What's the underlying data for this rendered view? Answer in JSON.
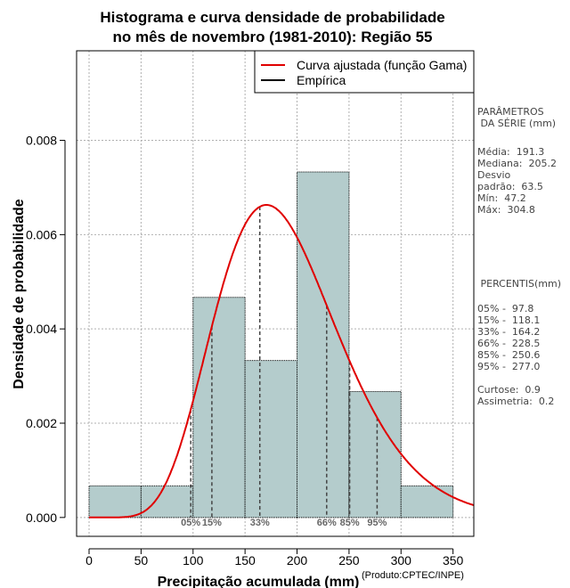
{
  "chart_data": {
    "type": "histogram",
    "title_line1": "Histograma e curva densidade de probabilidade",
    "title_line2": "no mês de novembro (1981-2010): Região 55",
    "xlabel": "Precipitação acumulada (mm)",
    "ylabel": "Densidade de probabilidade",
    "xlim": [
      -12,
      370
    ],
    "ylim": [
      -0.0004,
      0.0099
    ],
    "xticks": [
      0,
      50,
      100,
      150,
      200,
      250,
      300,
      350
    ],
    "yticks": [
      0.0,
      0.002,
      0.004,
      0.006,
      0.008
    ],
    "ytick_labels": [
      "0.000",
      "0.002",
      "0.004",
      "0.006",
      "0.008"
    ],
    "bins": [
      {
        "from": 0,
        "to": 50,
        "density": 0.00067
      },
      {
        "from": 50,
        "to": 100,
        "density": 0.00067
      },
      {
        "from": 100,
        "to": 150,
        "density": 0.00467
      },
      {
        "from": 150,
        "to": 200,
        "density": 0.00333
      },
      {
        "from": 200,
        "to": 250,
        "density": 0.00733
      },
      {
        "from": 250,
        "to": 300,
        "density": 0.00267
      },
      {
        "from": 300,
        "to": 350,
        "density": 0.00067
      }
    ],
    "fitted_curve": {
      "name": "Curva ajustada (função Gama)",
      "shape": 9.2,
      "scale": 20.8,
      "color": "#e00000"
    },
    "empirical_name": "Empírica",
    "percentile_markers": [
      {
        "label": "05%",
        "value": 97.8
      },
      {
        "label": "15%",
        "value": 118.1
      },
      {
        "label": "33%",
        "value": 164.2
      },
      {
        "label": "66%",
        "value": 228.5
      },
      {
        "label": "85%",
        "value": 250.6
      },
      {
        "label": "95%",
        "value": 277.0
      }
    ],
    "legend_position": "top-right",
    "grid": true,
    "bar_color": "#b4cccc"
  },
  "side": {
    "params_title": "PARÂMETROS\n DA SÉRIE (mm)",
    "params_body": "Média:  191.3\nMediana:  205.2\nDesvio\npadrão:  63.5\nMín:  47.2\nMáx:  304.8",
    "percentis_title": " PERCENTIS(mm)",
    "percentis_body": "05% -  97.8\n15% -  118.1\n33% -  164.2\n66% -  228.5\n85% -  250.6\n95% -  277.0\n\nCurtose:  0.9\nAssimetria:  0.2"
  },
  "credit": "(Produto:CPTEC/INPE)"
}
